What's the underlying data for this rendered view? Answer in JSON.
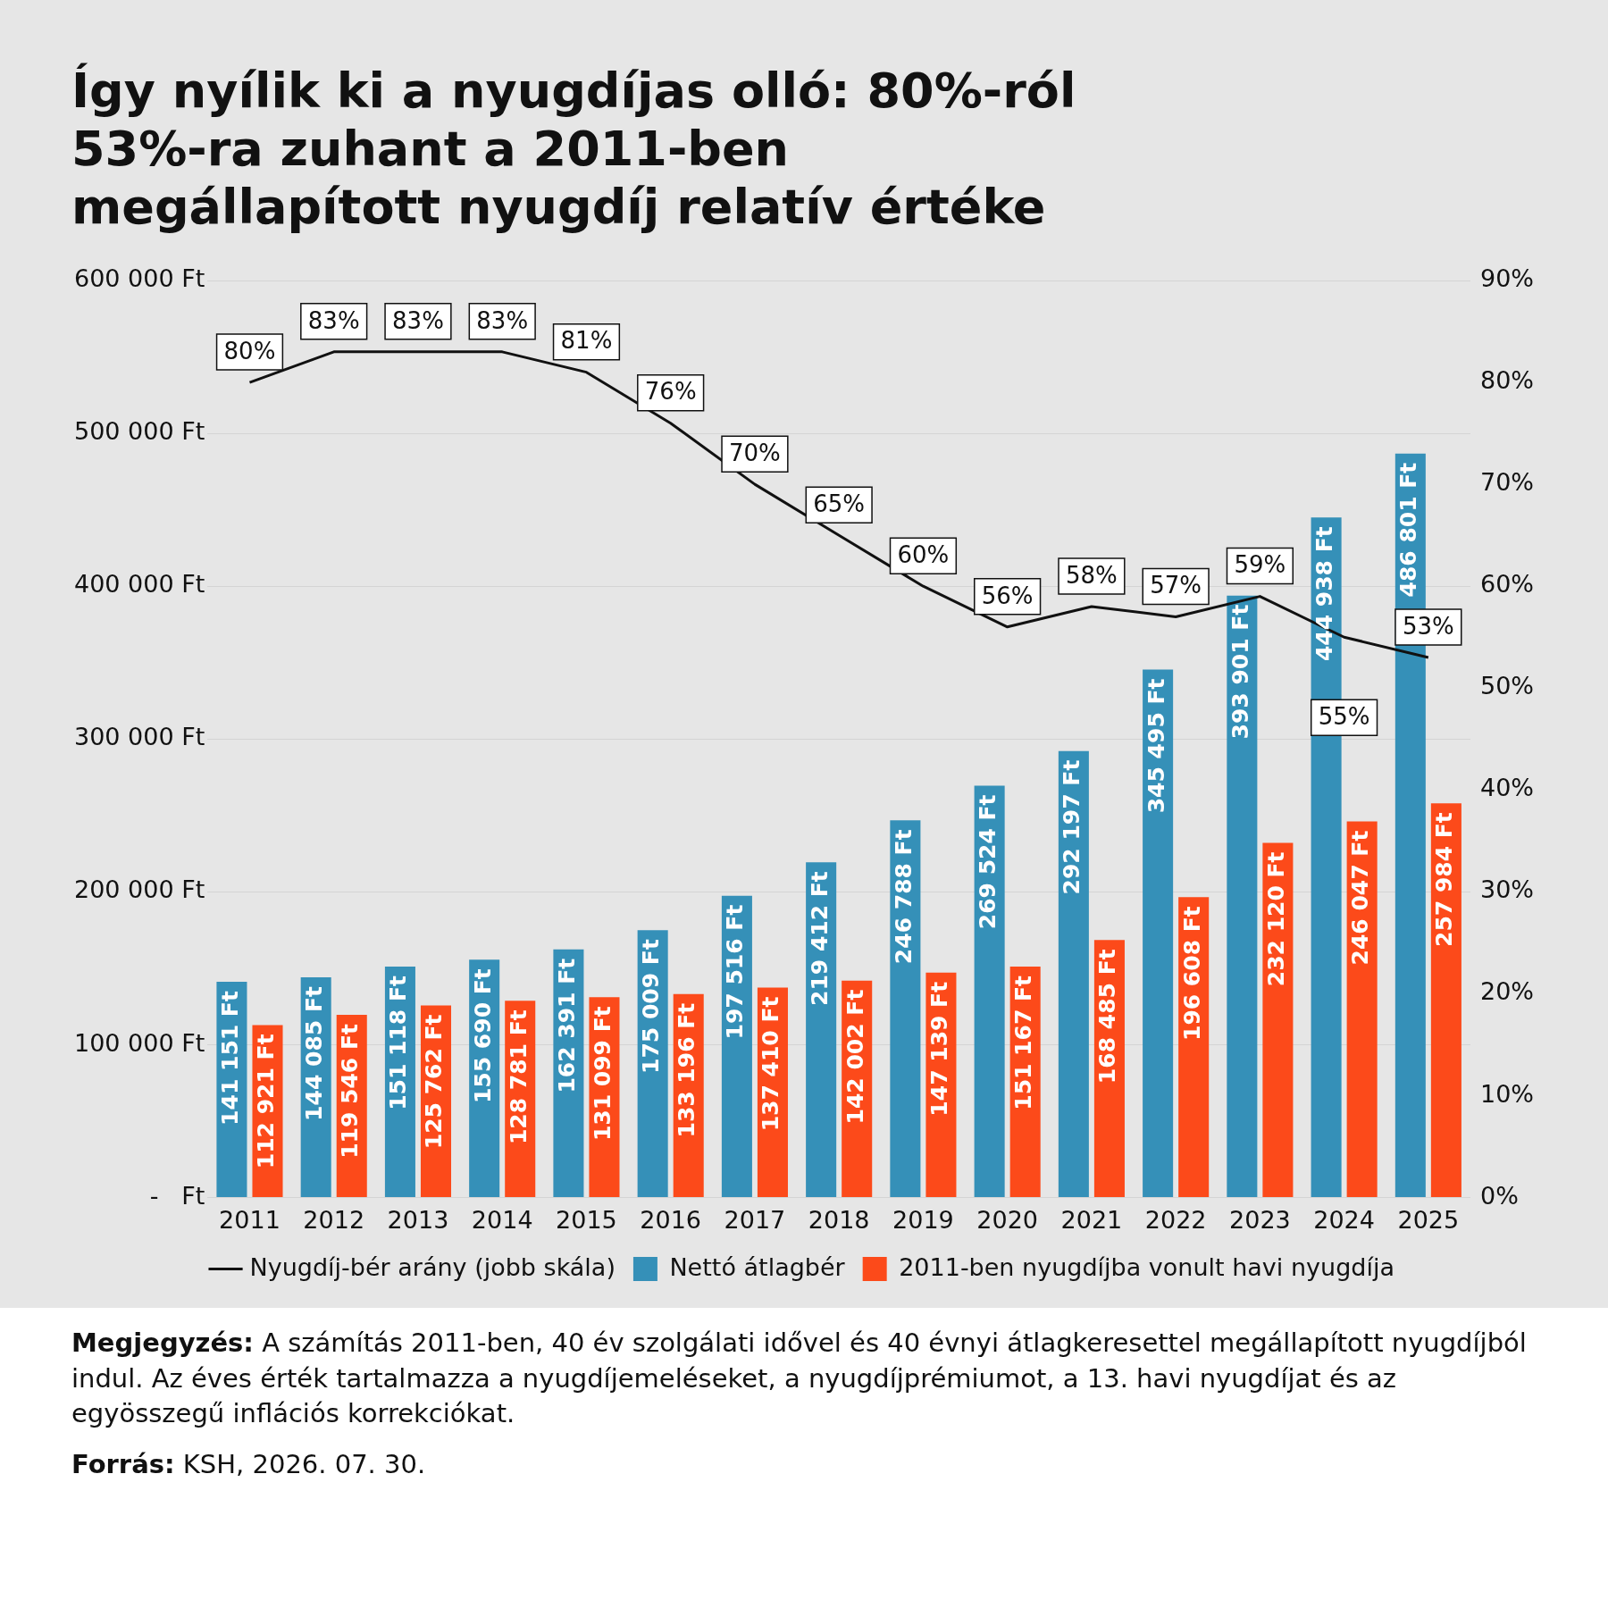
{
  "chart_data": {
    "type": "bar",
    "title": "Így nyílik ki a nyugdíjas olló: 80%-ról 53%-ra zuhant a 2011-ben megállapított nyugdíj relatív értéke",
    "categories": [
      "2011",
      "2012",
      "2013",
      "2014",
      "2015",
      "2016",
      "2017",
      "2018",
      "2019",
      "2020",
      "2021",
      "2022",
      "2023",
      "2024",
      "2025"
    ],
    "series": [
      {
        "name": "Nettó átlagbér",
        "color": "#3590b8",
        "values": [
          141151,
          144085,
          151118,
          155690,
          162391,
          175009,
          197516,
          219412,
          246788,
          269524,
          292197,
          345495,
          393901,
          444938,
          486801
        ],
        "value_labels": [
          "141 151 Ft",
          "144 085 Ft",
          "151 118 Ft",
          "155 690 Ft",
          "162 391 Ft",
          "175 009 Ft",
          "197 516 Ft",
          "219 412 Ft",
          "246 788 Ft",
          "269 524 Ft",
          "292 197 Ft",
          "345 495 Ft",
          "393 901 Ft",
          "444 938 Ft",
          "486 801 Ft"
        ]
      },
      {
        "name": "2011-ben nyugdíjba vonult havi nyugdíja",
        "color": "#fc4a1a",
        "values": [
          112921,
          119546,
          125762,
          128781,
          131099,
          133196,
          137410,
          142002,
          147139,
          151167,
          168485,
          196608,
          232120,
          246047,
          257984
        ],
        "value_labels": [
          "112 921 Ft",
          "119 546 Ft",
          "125 762 Ft",
          "128 781 Ft",
          "131 099 Ft",
          "133 196 Ft",
          "137 410 Ft",
          "142 002 Ft",
          "147 139 Ft",
          "151 167 Ft",
          "168 485 Ft",
          "196 608 Ft",
          "232 120 Ft",
          "246 047 Ft",
          "257 984 Ft"
        ]
      },
      {
        "name": "Nyugdíj-bér arány (jobb skála)",
        "type": "line",
        "axis": "y2",
        "color": "#111111",
        "values": [
          80,
          83,
          83,
          83,
          81,
          76,
          70,
          65,
          60,
          56,
          58,
          57,
          59,
          55,
          53
        ],
        "value_labels": [
          "80%",
          "83%",
          "83%",
          "83%",
          "81%",
          "76%",
          "70%",
          "65%",
          "60%",
          "56%",
          "58%",
          "57%",
          "59%",
          "55%",
          "53%"
        ]
      }
    ],
    "ylim": [
      0,
      600000
    ],
    "yticks": [
      {
        "value": 0,
        "label": "-   Ft"
      },
      {
        "value": 100000,
        "label": "100 000 Ft"
      },
      {
        "value": 200000,
        "label": "200 000 Ft"
      },
      {
        "value": 300000,
        "label": "300 000 Ft"
      },
      {
        "value": 400000,
        "label": "400 000 Ft"
      },
      {
        "value": 500000,
        "label": "500 000 Ft"
      },
      {
        "value": 600000,
        "label": "600 000 Ft"
      }
    ],
    "y2lim": [
      0,
      90
    ],
    "y2ticks": [
      {
        "value": 0,
        "label": "0%"
      },
      {
        "value": 10,
        "label": "10%"
      },
      {
        "value": 20,
        "label": "20%"
      },
      {
        "value": 30,
        "label": "30%"
      },
      {
        "value": 40,
        "label": "40%"
      },
      {
        "value": 50,
        "label": "50%"
      },
      {
        "value": 60,
        "label": "60%"
      },
      {
        "value": 70,
        "label": "70%"
      },
      {
        "value": 80,
        "label": "80%"
      },
      {
        "value": 90,
        "label": "90%"
      }
    ],
    "grid": "y",
    "legend": "bottom",
    "marker": "none",
    "line_style": "solid",
    "annotations": [
      "Megjegyzés:  A számítás 2011-ben, 40 év szolgálati idővel és 40 évnyi átlagkeresettel megállapított nyugdíjból indul. Az éves érték tartalmazza a nyugdíjemeléseket, a nyugdíjprémiumot, a 13. havi nyugdíjat és az egyösszegű inflációs korrekciókat.",
      "Forrás: KSH, 2026. 07. 30."
    ]
  }
}
